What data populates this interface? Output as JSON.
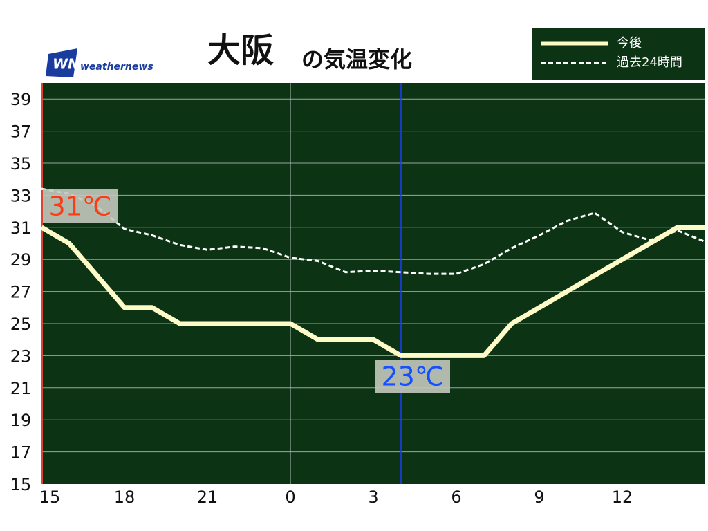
{
  "chart_data": {
    "type": "line",
    "title": "大阪",
    "subtitle": "の気温変化",
    "logo": "weathernews",
    "categories": [
      "15",
      null,
      null,
      "18",
      null,
      null,
      "21",
      null,
      null,
      "0",
      null,
      null,
      "3",
      null,
      null,
      "6",
      null,
      null,
      "9",
      null,
      null,
      "12",
      null,
      null,
      null
    ],
    "series": [
      {
        "name": "今後",
        "color": "#fffbc8",
        "dashed": false,
        "values": [
          31,
          30,
          28,
          26,
          26,
          25,
          25,
          25,
          25,
          25,
          24,
          24,
          24,
          23,
          23,
          23,
          23,
          25,
          26,
          27,
          28,
          29,
          30,
          31,
          31
        ]
      },
      {
        "name": "過去24時間",
        "color": "#ffffff",
        "dashed": true,
        "values": [
          33.4,
          33.1,
          32.3,
          30.9,
          30.5,
          29.9,
          29.6,
          29.8,
          29.7,
          29.1,
          28.9,
          28.2,
          28.3,
          28.2,
          28.1,
          28.1,
          28.7,
          29.7,
          30.5,
          31.4,
          31.9,
          30.7,
          30.2,
          30.8,
          30.1
        ]
      }
    ],
    "annotations": [
      {
        "text": "31℃",
        "color": "#ff3a12"
      },
      {
        "text": "23℃",
        "color": "#1450ff"
      }
    ],
    "ylim": [
      15,
      40
    ],
    "yticks": [
      15,
      17,
      19,
      21,
      23,
      25,
      27,
      29,
      31,
      33,
      35,
      37,
      39
    ],
    "grid": true,
    "background": "#0b3314"
  }
}
